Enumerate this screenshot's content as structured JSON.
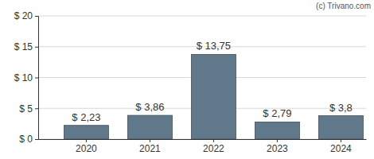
{
  "chart_data": {
    "type": "bar",
    "annotations": [
      "(c) Trivano.com"
    ],
    "categories": [
      "2020",
      "2021",
      "2022",
      "2023",
      "2024"
    ],
    "values": [
      2.23,
      3.86,
      13.75,
      2.79,
      3.8
    ],
    "value_labels": [
      "$ 2,23",
      "$ 3,86",
      "$ 13,75",
      "$ 2,79",
      "$ 3,8"
    ],
    "color": "#61778a",
    "ylim": [
      0,
      20
    ],
    "yticks": [
      {
        "value": 0,
        "label": "$ 0"
      },
      {
        "value": 5,
        "label": "$ 5"
      },
      {
        "value": 10,
        "label": "$ 10"
      },
      {
        "value": 15,
        "label": "$ 15"
      },
      {
        "value": 20,
        "label": "$ 20"
      }
    ],
    "grid": true,
    "data_labels": true
  }
}
